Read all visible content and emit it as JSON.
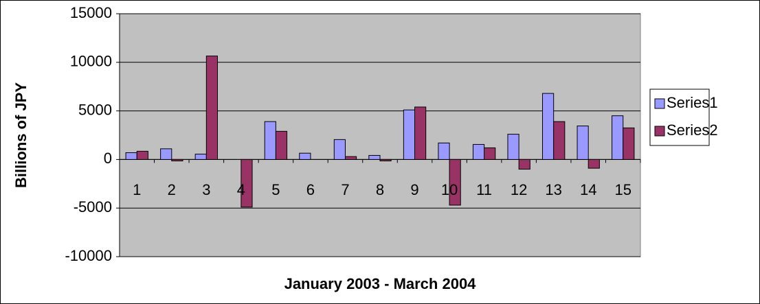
{
  "chart_data": {
    "type": "bar",
    "x_label": "January 2003 - March 2004",
    "y_label": "Billions of JPY",
    "categories": [
      "1",
      "2",
      "3",
      "4",
      "5",
      "6",
      "7",
      "8",
      "9",
      "10",
      "11",
      "12",
      "13",
      "14",
      "15"
    ],
    "series": [
      {
        "name": "Series1",
        "color": "#9999ff",
        "values": [
          700,
          1100,
          550,
          0,
          3900,
          650,
          2050,
          420,
          5100,
          1700,
          1550,
          2600,
          6800,
          3450,
          4500
        ]
      },
      {
        "name": "Series2",
        "color": "#993366",
        "values": [
          850,
          -150,
          10650,
          -4900,
          2900,
          0,
          300,
          -150,
          5400,
          -4700,
          1200,
          -1000,
          3900,
          -900,
          3250
        ]
      }
    ],
    "ylim": [
      -10000,
      15000
    ],
    "yticks": [
      -10000,
      -5000,
      0,
      5000,
      10000,
      15000
    ],
    "grid": true,
    "legend": "right"
  }
}
